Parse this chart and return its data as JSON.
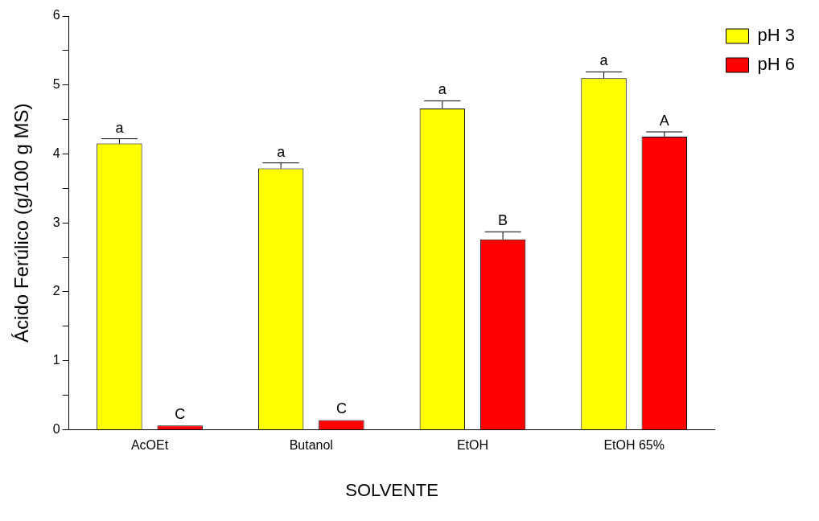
{
  "chart_data": {
    "type": "bar",
    "xlabel": "SOLVENTE",
    "ylabel": "Ácido Ferúlico (g/100 g MS)",
    "categories": [
      "AcOEt",
      "Butanol",
      "EtOH",
      "EtOH 65%"
    ],
    "series": [
      {
        "name": "pH 3",
        "color": "#ffff00",
        "values": [
          4.15,
          3.79,
          4.66,
          5.1
        ],
        "errors": [
          [
            4.15,
            4.22
          ],
          [
            3.79,
            3.87
          ],
          [
            4.66,
            4.77
          ],
          [
            5.1,
            5.19
          ]
        ],
        "value_labels": [
          "a",
          "a",
          "a",
          "a"
        ]
      },
      {
        "name": "pH 6",
        "color": "#ff0000",
        "values": [
          0.06,
          0.14,
          2.76,
          4.25
        ],
        "errors": [
          null,
          null,
          [
            2.76,
            2.87
          ],
          [
            4.25,
            4.32
          ]
        ],
        "value_labels": [
          "C",
          "C",
          "B",
          "A"
        ]
      }
    ],
    "ylim": [
      0,
      6
    ],
    "yticks": [
      0,
      {
        "value": 0.5,
        "label": null
      },
      1,
      {
        "value": 1.5,
        "label": null
      },
      2,
      {
        "value": 2.5,
        "label": null
      },
      3,
      {
        "value": 3.5,
        "label": null
      },
      4,
      {
        "value": 4.5,
        "label": null
      },
      5,
      {
        "value": 5.5,
        "label": null
      },
      6
    ],
    "grid": false,
    "legend": "top right"
  }
}
